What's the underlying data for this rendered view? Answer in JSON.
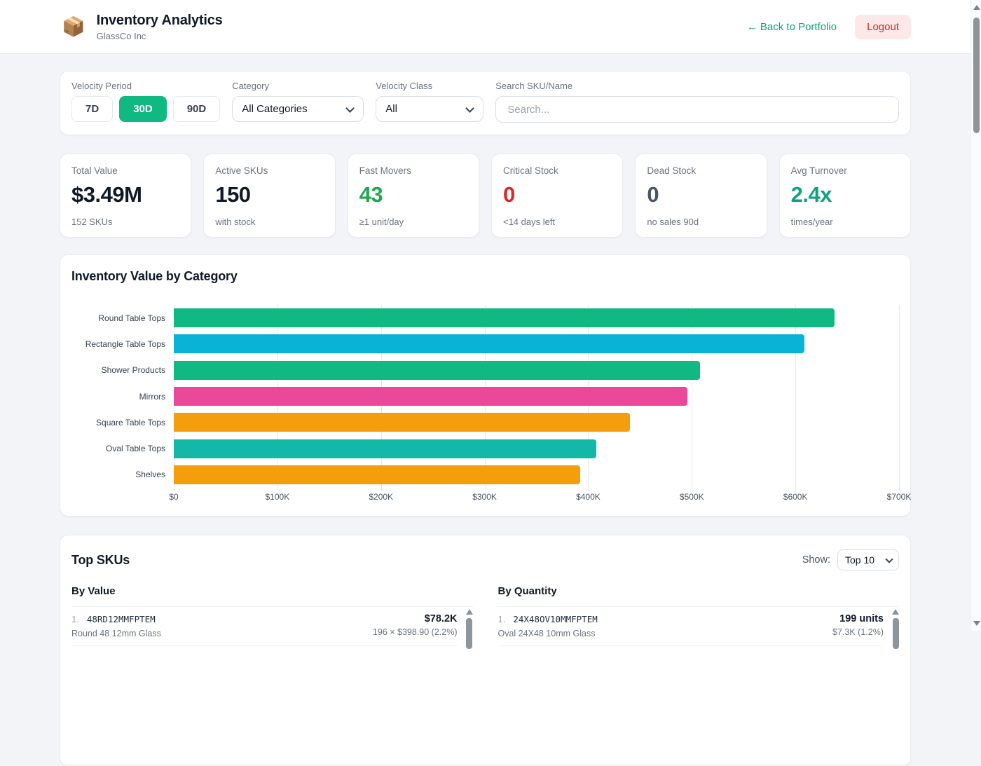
{
  "header": {
    "logo_icon": "package-emoji",
    "logo_glyph": "📦",
    "title": "Inventory Analytics",
    "subtitle": "GlassCo Inc",
    "back_link": "← Back to Portfolio",
    "logout_label": "Logout"
  },
  "filters": {
    "velocity_period": {
      "label": "Velocity Period",
      "options": [
        {
          "label": "7D",
          "selected": false
        },
        {
          "label": "30D",
          "selected": true
        },
        {
          "label": "90D",
          "selected": false
        }
      ],
      "selected_color": "#10b981"
    },
    "category": {
      "label": "Category",
      "value": "All Categories"
    },
    "velocity_class": {
      "label": "Velocity Class",
      "value": "All"
    },
    "search": {
      "label": "Search SKU/Name",
      "placeholder": "Search..."
    }
  },
  "stats": [
    {
      "label": "Total Value",
      "value": "$3.49M",
      "sub": "152 SKUs",
      "color": "#111827"
    },
    {
      "label": "Active SKUs",
      "value": "150",
      "sub": "with stock",
      "color": "#111827"
    },
    {
      "label": "Fast Movers",
      "value": "43",
      "sub": "≥1 unit/day",
      "color": "#1fa64e"
    },
    {
      "label": "Critical Stock",
      "value": "0",
      "sub": "<14 days left",
      "color": "#dc2626"
    },
    {
      "label": "Dead Stock",
      "value": "0",
      "sub": "no sales 90d",
      "color": "#4b5563"
    },
    {
      "label": "Avg Turnover",
      "value": "2.4x",
      "sub": "times/year",
      "color": "#0ea37f"
    }
  ],
  "chart_data": {
    "type": "bar",
    "orientation": "horizontal",
    "title": "Inventory Value by Category",
    "categories": [
      "Round Table Tops",
      "Rectangle Table Tops",
      "Shower Products",
      "Mirrors",
      "Square Table Tops",
      "Oval Table Tops",
      "Shelves"
    ],
    "values": [
      638000,
      609000,
      508000,
      496000,
      440000,
      408000,
      392000
    ],
    "bar_colors": [
      "#10b981",
      "#09b3d6",
      "#10b981",
      "#ec4899",
      "#f59e0b",
      "#14b8a6",
      "#f59e0b"
    ],
    "x_ticks": [
      "$0",
      "$100K",
      "$200K",
      "$300K",
      "$400K",
      "$500K",
      "$600K",
      "$700K"
    ],
    "xlim": [
      0,
      700000
    ],
    "grid": "vertical",
    "legend": "none"
  },
  "top_skus": {
    "title": "Top SKUs",
    "show_label": "Show:",
    "show_value": "Top 10",
    "columns": [
      {
        "header": "By Value",
        "items": [
          {
            "rank": "1.",
            "sku": "48RD12MMFPTEM",
            "name": "Round 48 12mm Glass",
            "value": "$78.2K",
            "sub": "196 × $398.90 (2.2%)"
          }
        ]
      },
      {
        "header": "By Quantity",
        "items": [
          {
            "rank": "1.",
            "sku": "24X48OV10MMFPTEM",
            "name": "Oval 24X48 10mm Glass",
            "value": "199 units",
            "sub": "$7.3K (1.2%)"
          }
        ]
      }
    ]
  }
}
